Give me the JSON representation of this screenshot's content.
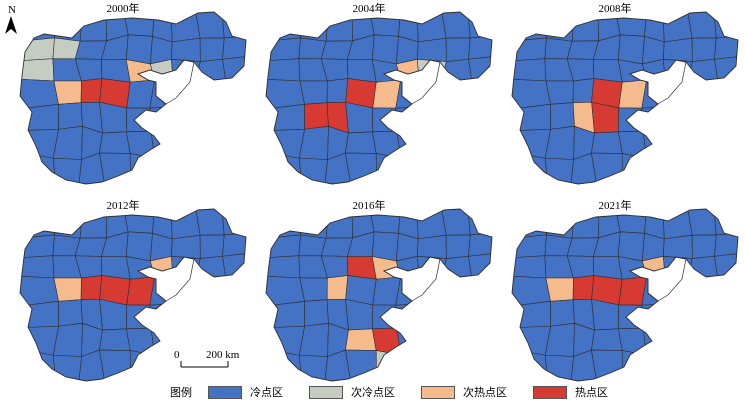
{
  "north_arrow": {
    "label": "N"
  },
  "scale_bar": {
    "zero_label": "0",
    "length_label": "200 km"
  },
  "colors": {
    "cold": "#4472c4",
    "sub_cold": "#c5cdc3",
    "sub_hot": "#f6bb8d",
    "hot": "#d63a32",
    "border": "#2e2e2e",
    "sea": "#ffffff"
  },
  "panels": [
    {
      "year": "2000年",
      "hot": [
        [
          2,
          3
        ],
        [
          3,
          3
        ]
      ],
      "sub_hot": [
        [
          1,
          3
        ],
        [
          4,
          2
        ]
      ],
      "sub_cold": [
        [
          0,
          1
        ],
        [
          1,
          1
        ],
        [
          0,
          2
        ],
        [
          5,
          2
        ]
      ]
    },
    {
      "year": "2004年",
      "hot": [
        [
          1,
          4
        ],
        [
          2,
          4
        ],
        [
          3,
          3
        ]
      ],
      "sub_hot": [
        [
          4,
          3
        ],
        [
          5,
          2
        ]
      ],
      "sub_cold": [
        [
          6,
          2
        ]
      ]
    },
    {
      "year": "2008年",
      "hot": [
        [
          3,
          3
        ],
        [
          3,
          4
        ]
      ],
      "sub_hot": [
        [
          2,
          4
        ],
        [
          4,
          3
        ]
      ],
      "sub_cold": []
    },
    {
      "year": "2012年",
      "hot": [
        [
          2,
          3
        ],
        [
          3,
          3
        ],
        [
          4,
          3
        ]
      ],
      "sub_hot": [
        [
          1,
          3
        ],
        [
          5,
          2
        ]
      ],
      "sub_cold": []
    },
    {
      "year": "2016年",
      "hot": [
        [
          3,
          2
        ],
        [
          4,
          5
        ]
      ],
      "sub_hot": [
        [
          2,
          3
        ],
        [
          4,
          2
        ],
        [
          3,
          5
        ],
        [
          5,
          6
        ]
      ],
      "sub_cold": [
        [
          4,
          6
        ]
      ]
    },
    {
      "year": "2021年",
      "hot": [
        [
          2,
          3
        ],
        [
          3,
          3
        ],
        [
          4,
          3
        ]
      ],
      "sub_hot": [
        [
          1,
          3
        ],
        [
          5,
          2
        ]
      ],
      "sub_cold": []
    }
  ],
  "legend": {
    "title": "图例",
    "items": [
      {
        "key": "cold",
        "label": "冷点区"
      },
      {
        "key": "sub_cold",
        "label": "次冷点区"
      },
      {
        "key": "sub_hot",
        "label": "次热点区"
      },
      {
        "key": "hot",
        "label": "热点区"
      }
    ]
  }
}
